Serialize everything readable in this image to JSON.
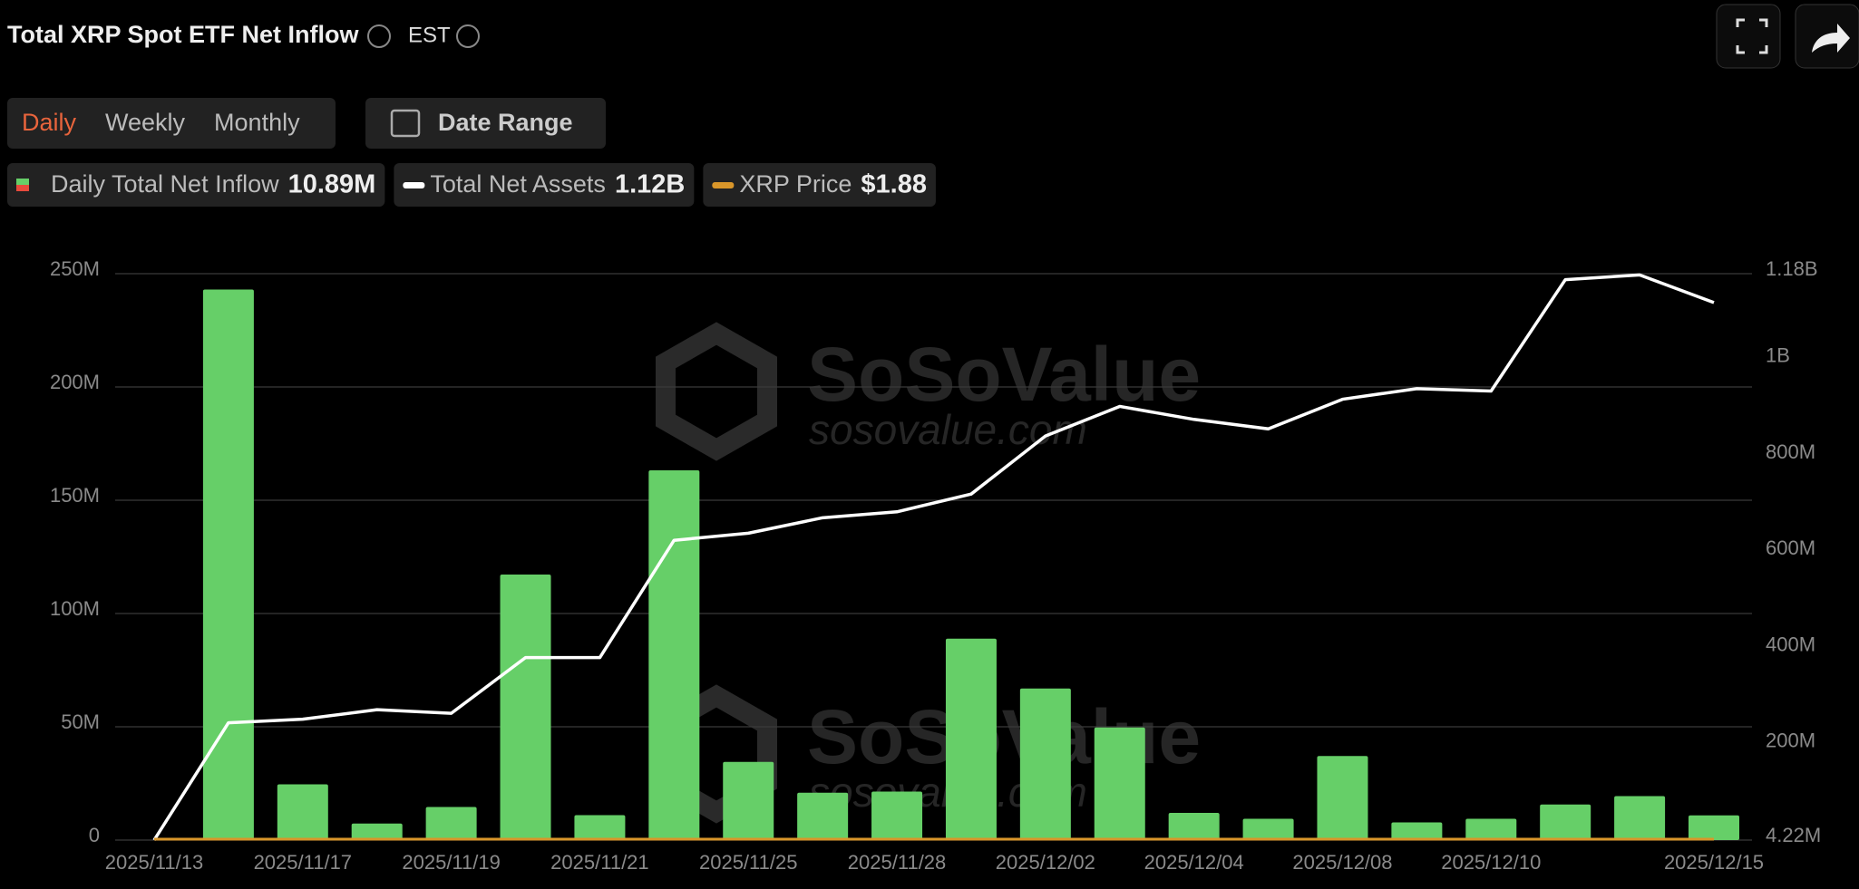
{
  "header": {
    "title": "Total XRP Spot ETF Net Inflow",
    "timezone": "EST"
  },
  "controls": {
    "periods": [
      "Daily",
      "Weekly",
      "Monthly"
    ],
    "active_period_index": 0,
    "date_range": "Date Range"
  },
  "watermark": {
    "brand": "SoSoValue",
    "url": "sosovalue.com"
  },
  "chart_data": {
    "type": "bar",
    "categories": [
      "2025/11/13",
      null,
      "2025/11/17",
      null,
      "2025/11/19",
      null,
      "2025/11/21",
      null,
      "2025/11/25",
      null,
      "2025/11/28",
      null,
      "2025/12/02",
      null,
      "2025/12/04",
      null,
      "2025/12/08",
      null,
      "2025/12/10",
      null,
      null,
      "2025/12/15"
    ],
    "series": [
      {
        "name": "Daily Total Net Inflow",
        "type": "bar",
        "color": "#66cf68",
        "latest_label": "10.89M",
        "values": [
          0,
          243000000,
          24600000,
          7300000,
          14600000,
          117200000,
          11000000,
          163200000,
          34500000,
          20900000,
          21400000,
          88900000,
          66900000,
          49700000,
          12000000,
          9400000,
          37100000,
          7800000,
          9400000,
          15700000,
          19400000,
          10890000
        ]
      },
      {
        "name": "Total Net Assets",
        "type": "line",
        "axis": "y2",
        "color": "#ffffff",
        "latest_label": "1.12B",
        "values": [
          4220000,
          247700000,
          255100000,
          274800000,
          267400000,
          383000000,
          383000000,
          626500000,
          641300000,
          673300000,
          685600000,
          722500000,
          843000000,
          904500000,
          877500000,
          857800000,
          919300000,
          941400000,
          936400000,
          1167600000,
          1177500000,
          1120000000
        ]
      },
      {
        "name": "XRP Price",
        "type": "flat",
        "color": "#d9962a",
        "latest": 1.88,
        "latest_label": "$1.88"
      }
    ],
    "ylim": [
      0,
      250000000
    ],
    "yticks": [
      0,
      {
        "value": 50000000,
        "label": "50M"
      },
      {
        "value": 100000000,
        "label": "100M"
      },
      {
        "value": 150000000,
        "label": "150M"
      },
      {
        "value": 200000000,
        "label": "200M"
      },
      {
        "value": 250000000,
        "label": "250M"
      }
    ],
    "y2lim": [
      4220000,
      1180000000
    ],
    "y2ticks": [
      {
        "value": 4220000,
        "label": "4.22M"
      },
      {
        "value": 200000000,
        "label": "200M"
      },
      {
        "value": 400000000,
        "label": "400M"
      },
      {
        "value": 600000000,
        "label": "600M"
      },
      {
        "value": 800000000,
        "label": "800M"
      },
      {
        "value": 1000000000,
        "label": "1B"
      },
      {
        "value": 1180000000,
        "label": "1.18B"
      }
    ],
    "grid": true
  }
}
